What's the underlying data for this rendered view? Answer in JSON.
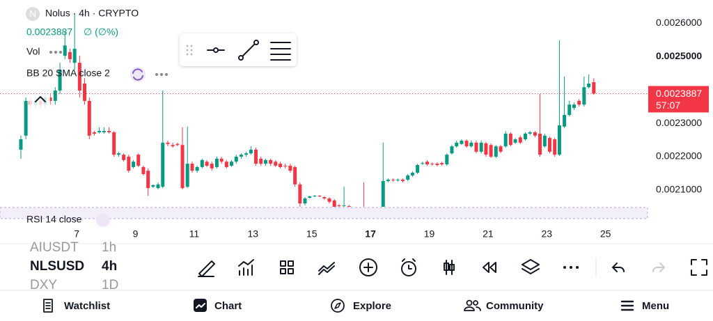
{
  "header": {
    "logo": "N",
    "symbol_line": "Nolus · 4h · CRYPTO",
    "change": "∅ (∅%)",
    "indicators": [
      "Vol",
      "BB 20 SMA close 2"
    ],
    "rsi": "RSI 14 close",
    "countdown": "57:07"
  },
  "chart_data": {
    "type": "candlestick",
    "up_color": "#089981",
    "down_color": "#f23645",
    "last_price": 0.0023887,
    "xlim": [
      4.39,
      26.43
    ],
    "xticks": [
      7,
      9,
      11,
      13,
      15,
      17,
      19,
      21,
      23,
      25
    ],
    "ylim": [
      0.00205,
      0.002669
    ],
    "yticks": [
      {
        "value": 0.0021,
        "label": "0.0021000"
      },
      {
        "value": 0.0022,
        "label": "0.0022000"
      },
      {
        "value": 0.0023,
        "label": "0.0023000"
      },
      {
        "value": 0.0025,
        "label": "0.0025000"
      },
      {
        "value": 0.0026,
        "label": "0.0026000"
      }
    ],
    "x": [
      5.1,
      5.27,
      5.43,
      5.6,
      5.77,
      5.93,
      6.1,
      6.27,
      6.43,
      6.6,
      6.77,
      6.93,
      7.1,
      7.27,
      7.43,
      7.6,
      7.77,
      7.93,
      8.1,
      8.27,
      8.43,
      8.6,
      8.77,
      8.93,
      9.1,
      9.27,
      9.43,
      9.6,
      9.77,
      9.93,
      10.1,
      10.27,
      10.43,
      10.6,
      10.77,
      10.93,
      11.1,
      11.27,
      11.43,
      11.6,
      11.77,
      11.93,
      12.1,
      12.27,
      12.43,
      12.6,
      12.77,
      12.93,
      13.1,
      13.27,
      13.43,
      13.6,
      13.77,
      13.93,
      14.1,
      14.27,
      14.43,
      14.6,
      14.77,
      14.93,
      15.1,
      15.27,
      15.43,
      15.6,
      15.77,
      15.93,
      16.1,
      16.27,
      16.43,
      16.6,
      16.77,
      16.93,
      17.1,
      17.27,
      17.43,
      17.6,
      17.77,
      17.93,
      18.1,
      18.27,
      18.43,
      18.6,
      18.77,
      18.93,
      19.1,
      19.27,
      19.43,
      19.6,
      19.77,
      19.93,
      20.1,
      20.27,
      20.43,
      20.6,
      20.77,
      20.93,
      21.1,
      21.27,
      21.43,
      21.6,
      21.77,
      21.93,
      22.1,
      22.27,
      22.43,
      22.6,
      22.77,
      22.93,
      23.1,
      23.27,
      23.43,
      23.6,
      23.77,
      23.93,
      24.1,
      24.27,
      24.43,
      24.6
    ],
    "open": [
      0.002221,
      0.002263,
      0.002367,
      0.002356,
      0.002367,
      0.002356,
      0.002377,
      0.002367,
      0.002398,
      0.002502,
      0.002513,
      0.002481,
      0.002481,
      0.002419,
      0.002367,
      0.002273,
      0.002273,
      0.002273,
      0.002277,
      0.002273,
      0.002206,
      0.002206,
      0.0022,
      0.002169,
      0.002206,
      0.002169,
      0.002158,
      0.00211,
      0.002106,
      0.00211,
      0.002242,
      0.002235,
      0.002238,
      0.002235,
      0.00211,
      0.002179,
      0.002158,
      0.002169,
      0.002185,
      0.002179,
      0.002169,
      0.002194,
      0.002185,
      0.002173,
      0.002185,
      0.0022,
      0.002206,
      0.00221,
      0.002221,
      0.002194,
      0.002179,
      0.00219,
      0.002185,
      0.002179,
      0.002173,
      0.002173,
      0.002169,
      0.002117,
      0.00206,
      0.002077,
      0.002081,
      0.002083,
      0.002079,
      0.002075,
      0.002069,
      0.002054,
      0.002052,
      0.002052,
      0.002046,
      0.00204,
      0.002042,
      0.00204,
      0.002043,
      0.002041,
      0.002044,
      0.002127,
      0.002131,
      0.002129,
      0.002131,
      0.002131,
      0.002144,
      0.002152,
      0.002179,
      0.002185,
      0.002179,
      0.002179,
      0.002181,
      0.002177,
      0.00221,
      0.002231,
      0.002238,
      0.002248,
      0.002231,
      0.002242,
      0.002215,
      0.00224,
      0.002235,
      0.0022,
      0.002231,
      0.002231,
      0.002269,
      0.002242,
      0.002258,
      0.002252,
      0.002269,
      0.002273,
      0.002269,
      0.002231,
      0.002256,
      0.002252,
      0.002206,
      0.00229,
      0.002325,
      0.002346,
      0.002367,
      0.002356,
      0.002408,
      0.002423
    ],
    "high": [
      0.002263,
      0.002377,
      0.002377,
      0.002377,
      0.002377,
      0.002388,
      0.002388,
      0.002408,
      0.002481,
      0.002575,
      0.002523,
      0.002627,
      0.002502,
      0.002435,
      0.002377,
      0.002277,
      0.002288,
      0.002288,
      0.002288,
      0.002277,
      0.002215,
      0.00221,
      0.002206,
      0.00219,
      0.00221,
      0.002173,
      0.002165,
      0.002117,
      0.002123,
      0.002398,
      0.002248,
      0.002242,
      0.002242,
      0.002288,
      0.00229,
      0.002185,
      0.002173,
      0.002194,
      0.00219,
      0.002185,
      0.0022,
      0.0022,
      0.00219,
      0.00219,
      0.002206,
      0.00221,
      0.002215,
      0.002231,
      0.002227,
      0.0022,
      0.002194,
      0.002194,
      0.00219,
      0.002185,
      0.002179,
      0.002179,
      0.002173,
      0.002123,
      0.002079,
      0.002083,
      0.002085,
      0.002085,
      0.002081,
      0.002079,
      0.002073,
      0.002058,
      0.00211,
      0.002056,
      0.00205,
      0.002046,
      0.002123,
      0.002046,
      0.002046,
      0.002047,
      0.002242,
      0.002135,
      0.002135,
      0.002135,
      0.002135,
      0.002148,
      0.002156,
      0.002179,
      0.002185,
      0.00219,
      0.002183,
      0.002183,
      0.002185,
      0.00221,
      0.002235,
      0.002248,
      0.002252,
      0.002252,
      0.002248,
      0.002248,
      0.002248,
      0.002244,
      0.00224,
      0.002235,
      0.002235,
      0.002277,
      0.002273,
      0.002256,
      0.002263,
      0.002273,
      0.002277,
      0.002277,
      0.002388,
      0.002269,
      0.00226,
      0.002256,
      0.002548,
      0.00244,
      0.002367,
      0.002362,
      0.002372,
      0.00244,
      0.002446,
      0.002435
    ],
    "low": [
      0.002194,
      0.002252,
      0.002346,
      0.002346,
      0.002346,
      0.002346,
      0.002356,
      0.002356,
      0.002388,
      0.002492,
      0.002481,
      0.00246,
      0.002377,
      0.002356,
      0.002252,
      0.002263,
      0.002269,
      0.002269,
      0.002269,
      0.0022,
      0.0022,
      0.002185,
      0.002152,
      0.002165,
      0.002169,
      0.002144,
      0.002083,
      0.002106,
      0.002102,
      0.002106,
      0.002231,
      0.002227,
      0.002231,
      0.002102,
      0.002106,
      0.002152,
      0.002152,
      0.002165,
      0.002169,
      0.002158,
      0.002165,
      0.002179,
      0.002165,
      0.002169,
      0.002179,
      0.002194,
      0.0022,
      0.002206,
      0.002173,
      0.002173,
      0.002173,
      0.002173,
      0.002169,
      0.002165,
      0.002165,
      0.002152,
      0.00211,
      0.00205,
      0.002054,
      0.002075,
      0.002079,
      0.002079,
      0.002071,
      0.00206,
      0.002046,
      0.002048,
      0.002046,
      0.002046,
      0.002035,
      0.002035,
      0.002035,
      0.002035,
      0.002036,
      0.002036,
      0.00204,
      0.002123,
      0.002125,
      0.002125,
      0.002123,
      0.002127,
      0.00214,
      0.002148,
      0.002175,
      0.002173,
      0.002173,
      0.002171,
      0.002173,
      0.002173,
      0.002206,
      0.002227,
      0.002235,
      0.002227,
      0.002227,
      0.00221,
      0.00221,
      0.0022,
      0.002196,
      0.002196,
      0.00221,
      0.002227,
      0.002231,
      0.002238,
      0.002238,
      0.002248,
      0.002265,
      0.002258,
      0.0022,
      0.002227,
      0.00221,
      0.0022,
      0.002202,
      0.002285,
      0.002321,
      0.00234,
      0.00235,
      0.00235,
      0.002404,
      0.002385
    ],
    "close": [
      0.002252,
      0.002367,
      0.002356,
      0.002367,
      0.002356,
      0.002377,
      0.002367,
      0.002398,
      0.00246,
      0.002533,
      0.002492,
      0.002523,
      0.002398,
      0.002367,
      0.002263,
      0.002269,
      0.002277,
      0.002277,
      0.002273,
      0.002206,
      0.00221,
      0.00219,
      0.002158,
      0.002185,
      0.002173,
      0.002148,
      0.002106,
      0.002115,
      0.002117,
      0.002242,
      0.002238,
      0.002231,
      0.002235,
      0.002106,
      0.002179,
      0.002158,
      0.002169,
      0.00219,
      0.002173,
      0.002165,
      0.002194,
      0.002185,
      0.002169,
      0.002185,
      0.0022,
      0.002206,
      0.00221,
      0.002221,
      0.002179,
      0.002179,
      0.00219,
      0.002179,
      0.002173,
      0.002169,
      0.002171,
      0.002158,
      0.002117,
      0.00206,
      0.002075,
      0.002081,
      0.002083,
      0.002081,
      0.002075,
      0.002065,
      0.00205,
      0.002052,
      0.002054,
      0.002051,
      0.00204,
      0.002042,
      0.00204,
      0.002043,
      0.002041,
      0.002044,
      0.002127,
      0.002131,
      0.002129,
      0.002131,
      0.002127,
      0.002144,
      0.002152,
      0.002175,
      0.002181,
      0.002177,
      0.002177,
      0.002175,
      0.002177,
      0.002206,
      0.002231,
      0.002242,
      0.002248,
      0.002231,
      0.002242,
      0.002215,
      0.002242,
      0.002206,
      0.0022,
      0.002231,
      0.002215,
      0.002269,
      0.002235,
      0.002252,
      0.002242,
      0.002269,
      0.002273,
      0.002263,
      0.002206,
      0.002263,
      0.002215,
      0.002206,
      0.002294,
      0.002325,
      0.002356,
      0.002356,
      0.002356,
      0.002408,
      0.002419,
      0.0023887
    ]
  },
  "watchlist": [
    {
      "symbol": "AIUSDT",
      "interval": "1h"
    },
    {
      "symbol": "NLSUSD",
      "interval": "4h"
    },
    {
      "symbol": "DXY",
      "interval": "1D"
    }
  ],
  "nav": [
    "Watchlist",
    "Chart",
    "Explore",
    "Community",
    "Menu"
  ]
}
